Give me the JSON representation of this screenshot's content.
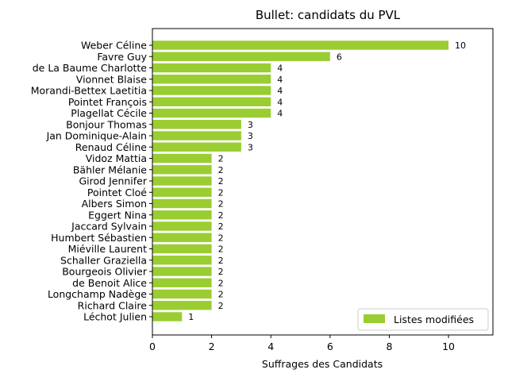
{
  "chart_data": {
    "type": "bar",
    "orientation": "horizontal",
    "title": "Bullet: candidats du PVL",
    "xlabel": "Suffrages des Candidats",
    "ylabel": "",
    "xlim": [
      0,
      11.5
    ],
    "xticks": [
      0,
      2,
      4,
      6,
      8,
      10
    ],
    "grid": false,
    "legend_position": "lower-right",
    "bar_color": "#9acd32",
    "categories": [
      "Weber Céline",
      "Favre Guy",
      "de La Baume Charlotte",
      "Vionnet Blaise",
      "Morandi-Bettex Laetitia",
      "Pointet François",
      "Plagellat Cécile",
      "Bonjour Thomas",
      "Jan Dominique-Alain",
      "Renaud Céline",
      "Vidoz Mattia",
      "Bähler Mélanie",
      "Girod Jennifer",
      "Pointet Cloé",
      "Albers Simon",
      "Eggert Nina",
      "Jaccard Sylvain",
      "Humbert Sébastien",
      "Miéville Laurent",
      "Schaller Graziella",
      "Bourgeois Olivier",
      "de Benoit Alice",
      "Longchamp Nadège",
      "Richard Claire",
      "Léchot Julien"
    ],
    "series": [
      {
        "name": "Listes modifiées",
        "values": [
          10,
          6,
          4,
          4,
          4,
          4,
          4,
          3,
          3,
          3,
          2,
          2,
          2,
          2,
          2,
          2,
          2,
          2,
          2,
          2,
          2,
          2,
          2,
          2,
          1
        ]
      }
    ]
  }
}
